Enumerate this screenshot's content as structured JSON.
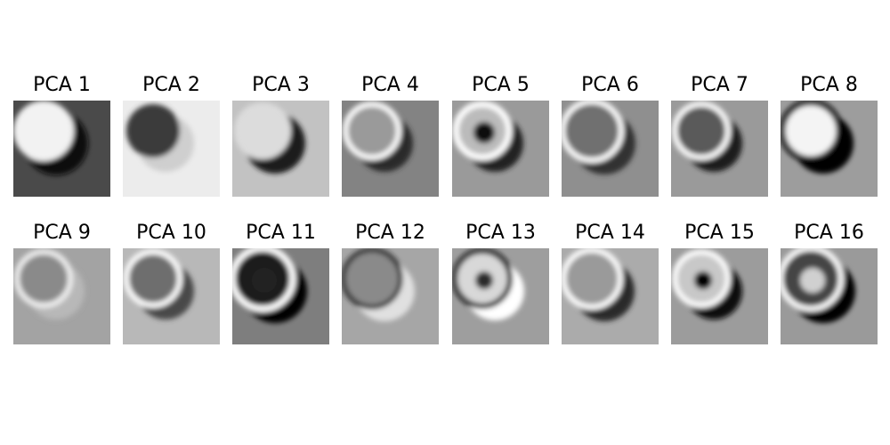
{
  "panels": [
    {
      "label": "PCA 1",
      "bg": "#4a4a4a",
      "rings": [
        {
          "r": 34,
          "color": "#ffffff",
          "w": 0,
          "fill": "#f2f2f2"
        }
      ],
      "shadow": "#0e0e0e"
    },
    {
      "label": "PCA 2",
      "bg": "#ececec",
      "rings": [
        {
          "r": 30,
          "color": "#000000",
          "w": 0,
          "fill": "#3a3a3a"
        }
      ],
      "shadow": "#cfcfcf"
    },
    {
      "label": "PCA 3",
      "bg": "#c2c2c2",
      "rings": [
        {
          "r": 32,
          "color": "#eeeeee",
          "w": 0,
          "fill": "#dcdcdc"
        }
      ],
      "shadow": "#1a1a1a"
    },
    {
      "label": "PCA 4",
      "bg": "#838383",
      "rings": [
        {
          "r": 30,
          "color": "#ffffff",
          "w": 6,
          "fill": "#9a9a9a"
        }
      ],
      "shadow": "#2a2a2a"
    },
    {
      "label": "PCA 5",
      "bg": "#9a9a9a",
      "rings": [
        {
          "r": 30,
          "color": "#ffffff",
          "w": 7,
          "fill": "#bbbbbb"
        },
        {
          "r": 12,
          "color": "#000000",
          "w": 0,
          "fill": "#111111"
        }
      ],
      "shadow": "#222222"
    },
    {
      "label": "PCA 6",
      "bg": "#8f8f8f",
      "rings": [
        {
          "r": 33,
          "color": "#ffffff",
          "w": 6,
          "fill": "#707070"
        }
      ],
      "shadow": "#333333"
    },
    {
      "label": "PCA 7",
      "bg": "#9a9a9a",
      "rings": [
        {
          "r": 30,
          "color": "#ffffff",
          "w": 6,
          "fill": "#5a5a5a"
        }
      ],
      "shadow": "#1e1e1e"
    },
    {
      "label": "PCA 8",
      "bg": "#9d9d9d",
      "rings": [
        {
          "r": 32,
          "color": "#111111",
          "w": 7,
          "fill": "#f4f4f4"
        }
      ],
      "shadow": "#000000"
    },
    {
      "label": "PCA 9",
      "bg": "#a3a3a3",
      "rings": [
        {
          "r": 30,
          "color": "#f0f0f0",
          "w": 6,
          "fill": "#8a8a8a"
        }
      ],
      "shadow": "#b8b8b8"
    },
    {
      "label": "PCA 10",
      "bg": "#b8b8b8",
      "rings": [
        {
          "r": 30,
          "color": "#ffffff",
          "w": 6,
          "fill": "#6e6e6e"
        }
      ],
      "shadow": "#4a4a4a"
    },
    {
      "label": "PCA 11",
      "bg": "#7e7e7e",
      "rings": [
        {
          "r": 34,
          "color": "#ffffff",
          "w": 7,
          "fill": "#1e1e1e"
        },
        {
          "r": 14,
          "color": "#000000",
          "w": 0,
          "fill": "#222222"
        }
      ],
      "shadow": "#000000"
    },
    {
      "label": "PCA 12",
      "bg": "#a6a6a6",
      "rings": [
        {
          "r": 32,
          "color": "#1a1a1a",
          "w": 5,
          "fill": "#8a8a8a"
        }
      ],
      "shadow": "#e0e0e0"
    },
    {
      "label": "PCA 13",
      "bg": "#9e9e9e",
      "rings": [
        {
          "r": 31,
          "color": "#111111",
          "w": 6,
          "fill": "#d8d8d8"
        },
        {
          "r": 10,
          "color": "#111111",
          "w": 0,
          "fill": "#2a2a2a"
        }
      ],
      "shadow": "#ffffff"
    },
    {
      "label": "PCA 14",
      "bg": "#ababab",
      "rings": [
        {
          "r": 32,
          "color": "#ffffff",
          "w": 6,
          "fill": "#9a9a9a"
        }
      ],
      "shadow": "#2a2a2a"
    },
    {
      "label": "PCA 15",
      "bg": "#9c9c9c",
      "rings": [
        {
          "r": 30,
          "color": "#ffffff",
          "w": 6,
          "fill": "#c8c8c8"
        },
        {
          "r": 10,
          "color": "#000000",
          "w": 0,
          "fill": "#000000"
        }
      ],
      "shadow": "#111111"
    },
    {
      "label": "PCA 16",
      "bg": "#9a9a9a",
      "rings": [
        {
          "r": 34,
          "color": "#ffffff",
          "w": 6,
          "fill": "#444444"
        },
        {
          "r": 14,
          "color": "#eeeeee",
          "w": 0,
          "fill": "#d0d0d0"
        }
      ],
      "shadow": "#000000"
    }
  ]
}
